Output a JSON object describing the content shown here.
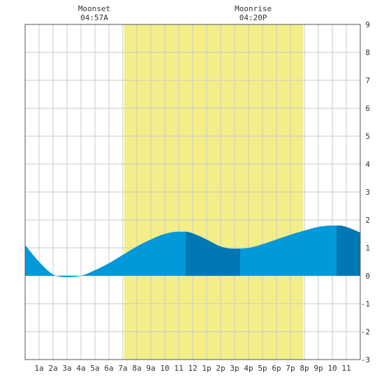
{
  "chart_data": {
    "type": "area",
    "title": "",
    "xlabel": "",
    "ylabel": "",
    "x_range_hours": [
      0,
      24
    ],
    "ylim": [
      -3,
      9
    ],
    "y_ticks": [
      "-3",
      "-2",
      "-1",
      "0",
      "1",
      "2",
      "3",
      "4",
      "5",
      "6",
      "7",
      "8",
      "9"
    ],
    "x_tick_labels": [
      "1a",
      "2a",
      "3a",
      "4a",
      "5a",
      "6a",
      "7a",
      "8a",
      "9a",
      "10",
      "11",
      "12",
      "1p",
      "2p",
      "3p",
      "4p",
      "5p",
      "6p",
      "7p",
      "8p",
      "9p",
      "10",
      "11"
    ],
    "grid": true,
    "daylight": {
      "start_hour": 7.1,
      "end_hour": 19.9
    },
    "annotations": [
      {
        "title": "Moonset",
        "time": "04:57A"
      },
      {
        "title": "Moonrise",
        "time": "04:20P"
      }
    ],
    "series": [
      {
        "x": [
          0,
          1,
          2,
          3,
          4,
          5,
          6,
          7,
          8,
          9,
          10,
          11,
          11.5,
          12,
          13,
          14,
          15,
          16,
          17,
          18,
          19,
          20,
          21,
          22,
          22.5,
          23,
          24
        ],
        "values": [
          1.1,
          0.5,
          0.05,
          -0.05,
          0.0,
          0.2,
          0.45,
          0.75,
          1.05,
          1.3,
          1.5,
          1.58,
          1.58,
          1.52,
          1.3,
          1.05,
          0.97,
          1.0,
          1.13,
          1.3,
          1.47,
          1.62,
          1.75,
          1.8,
          1.8,
          1.75,
          1.55
        ]
      }
    ],
    "band_boundaries_hours": [
      11.5,
      15.4,
      22.3
    ],
    "colors": {
      "daylight": "#f4ee88",
      "tide_light": "#0299da",
      "tide_dark": "#0178b3",
      "grid": "#c9c9c9",
      "border": "#555555",
      "text": "#333333"
    }
  }
}
